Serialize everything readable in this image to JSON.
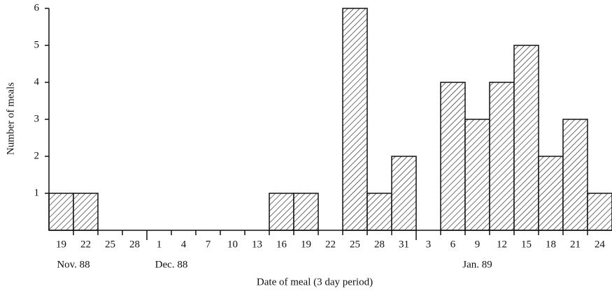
{
  "chart_data": {
    "type": "bar",
    "x_label": "Date of meal (3 day period)",
    "y_label": "Number of meals",
    "categories": [
      "19",
      "22",
      "25",
      "28",
      "1",
      "4",
      "7",
      "10",
      "13",
      "16",
      "19",
      "22",
      "25",
      "28",
      "31",
      "3",
      "6",
      "9",
      "12",
      "15",
      "18",
      "21",
      "24"
    ],
    "values": [
      1,
      1,
      0,
      0,
      0,
      0,
      0,
      0,
      0,
      1,
      1,
      0,
      6,
      1,
      2,
      0,
      4,
      3,
      4,
      5,
      2,
      3,
      1
    ],
    "month_labels": [
      "Nov. 88",
      "Dec. 88",
      "Jan. 89"
    ],
    "color": "#111111",
    "ylim": [
      0,
      6
    ],
    "yticks": [
      1,
      2,
      3,
      4,
      5,
      6
    ],
    "grid": false
  }
}
